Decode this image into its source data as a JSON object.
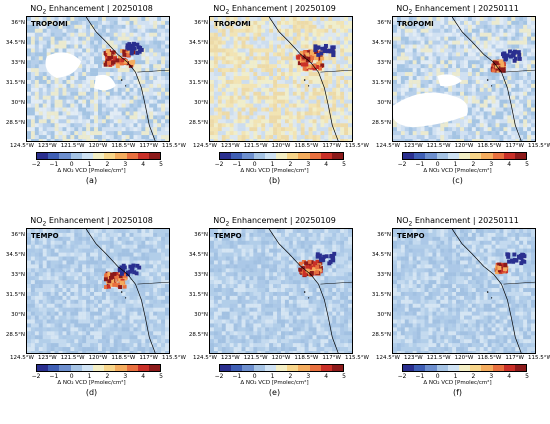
{
  "panels": [
    {
      "title_prefix": "NO",
      "title_sub": "2",
      "title_suffix": " Enhancement | 20250108",
      "sensor": "TROPOMI",
      "letter": "(a)"
    },
    {
      "title_prefix": "NO",
      "title_sub": "2",
      "title_suffix": " Enhancement | 20250109",
      "sensor": "TROPOMI",
      "letter": "(b)"
    },
    {
      "title_prefix": "NO",
      "title_sub": "2",
      "title_suffix": " Enhancement | 20250111",
      "sensor": "TROPOMI",
      "letter": "(c)"
    },
    {
      "title_prefix": "NO",
      "title_sub": "2",
      "title_suffix": " Enhancement | 20250108",
      "sensor": "TEMPO",
      "letter": "(d)"
    },
    {
      "title_prefix": "NO",
      "title_sub": "2",
      "title_suffix": " Enhancement | 20250109",
      "sensor": "TEMPO",
      "letter": "(e)"
    },
    {
      "title_prefix": "NO",
      "title_sub": "2",
      "title_suffix": " Enhancement | 20250111",
      "sensor": "TEMPO",
      "letter": "(f)"
    }
  ],
  "lat_ticks": [
    "36°N",
    "34.5°N",
    "33°N",
    "31.5°N",
    "30°N",
    "28.5°N"
  ],
  "lon_ticks": [
    "124.5°W",
    "123°W",
    "121.5°W",
    "120°W",
    "118.5°W",
    "117°W",
    "115.5°W"
  ],
  "colorbar": {
    "ticks": [
      "−2",
      "−1",
      "0",
      "1",
      "2",
      "3",
      "4",
      "5"
    ],
    "label": "Δ NO₂ VCD [Pmolec/cm²]",
    "colors": [
      "#2a2f8f",
      "#3f5fb5",
      "#6d8fce",
      "#a5c3e4",
      "#cfe2f3",
      "#f3eec4",
      "#f7d58a",
      "#f4ac5e",
      "#e8703f",
      "#c93028",
      "#8c1a1a"
    ]
  }
}
